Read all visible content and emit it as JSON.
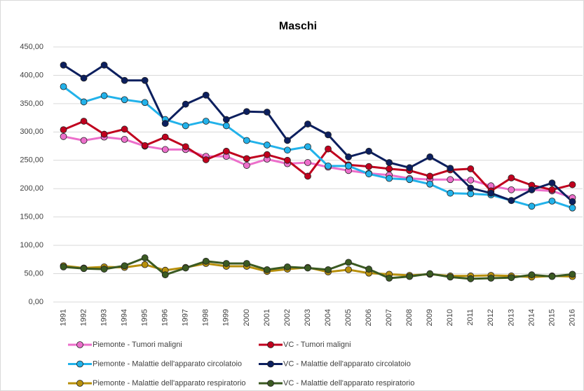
{
  "chart_data": {
    "type": "line",
    "title": "Maschi",
    "categories": [
      "1991",
      "1992",
      "1993",
      "1994",
      "1995",
      "1996",
      "1997",
      "1998",
      "1999",
      "2000",
      "2001",
      "2002",
      "2003",
      "2004",
      "2005",
      "2006",
      "2007",
      "2008",
      "2009",
      "2010",
      "2011",
      "2012",
      "2013",
      "2014",
      "2015",
      "2016"
    ],
    "series": [
      {
        "name": "Piemonte - Tumori maligni",
        "color": "#ec6fcb",
        "values": [
          292,
          285,
          291,
          287,
          275,
          269,
          269,
          257,
          257,
          241,
          252,
          244,
          246,
          238,
          232,
          227,
          224,
          218,
          216,
          216,
          215,
          205,
          198,
          198,
          196,
          184
        ]
      },
      {
        "name": "VC - Tumori maligni",
        "color": "#c0001e",
        "values": [
          304,
          319,
          296,
          305,
          276,
          291,
          274,
          251,
          266,
          253,
          260,
          250,
          222,
          270,
          242,
          239,
          235,
          232,
          222,
          233,
          235,
          196,
          219,
          206,
          198,
          207
        ]
      },
      {
        "name": "Piemonte - Malattie dell'apparato circolatoio",
        "color": "#22b2ea",
        "values": [
          380,
          353,
          364,
          357,
          352,
          322,
          311,
          319,
          311,
          285,
          277,
          268,
          274,
          240,
          240,
          226,
          218,
          216,
          208,
          192,
          191,
          189,
          179,
          169,
          178,
          166
        ]
      },
      {
        "name": "VC - Malattie dell'apparato circolatoio",
        "color": "#0c1f5e",
        "values": [
          418,
          395,
          418,
          391,
          391,
          315,
          349,
          365,
          322,
          336,
          335,
          285,
          314,
          295,
          256,
          266,
          246,
          237,
          256,
          236,
          201,
          192,
          179,
          198,
          210,
          177
        ]
      },
      {
        "name": "Piemonte - Malattie dell'apparato respiratorio",
        "color": "#b8900c",
        "values": [
          64,
          60,
          62,
          61,
          66,
          56,
          61,
          68,
          63,
          63,
          54,
          58,
          61,
          53,
          57,
          51,
          49,
          47,
          49,
          46,
          46,
          47,
          46,
          44,
          46,
          45
        ]
      },
      {
        "name": "VC - Malattie dell'apparato respiratorio",
        "color": "#3b5a22",
        "values": [
          62,
          59,
          58,
          64,
          78,
          48,
          60,
          72,
          68,
          68,
          57,
          62,
          60,
          57,
          70,
          58,
          42,
          45,
          50,
          44,
          41,
          42,
          43,
          48,
          45,
          49
        ]
      }
    ],
    "ylim": [
      0,
      450
    ],
    "yticks": [
      {
        "value": 0,
        "label": "0,00"
      },
      {
        "value": 50,
        "label": "50,00"
      },
      {
        "value": 100,
        "label": "100,00"
      },
      {
        "value": 150,
        "label": "150,00"
      },
      {
        "value": 200,
        "label": "200,00"
      },
      {
        "value": 250,
        "label": "250,00"
      },
      {
        "value": 300,
        "label": "300,00"
      },
      {
        "value": 350,
        "label": "350,00"
      },
      {
        "value": 400,
        "label": "400,00"
      },
      {
        "value": 450,
        "label": "450,00"
      }
    ],
    "grid": true,
    "legend": "bottom"
  }
}
